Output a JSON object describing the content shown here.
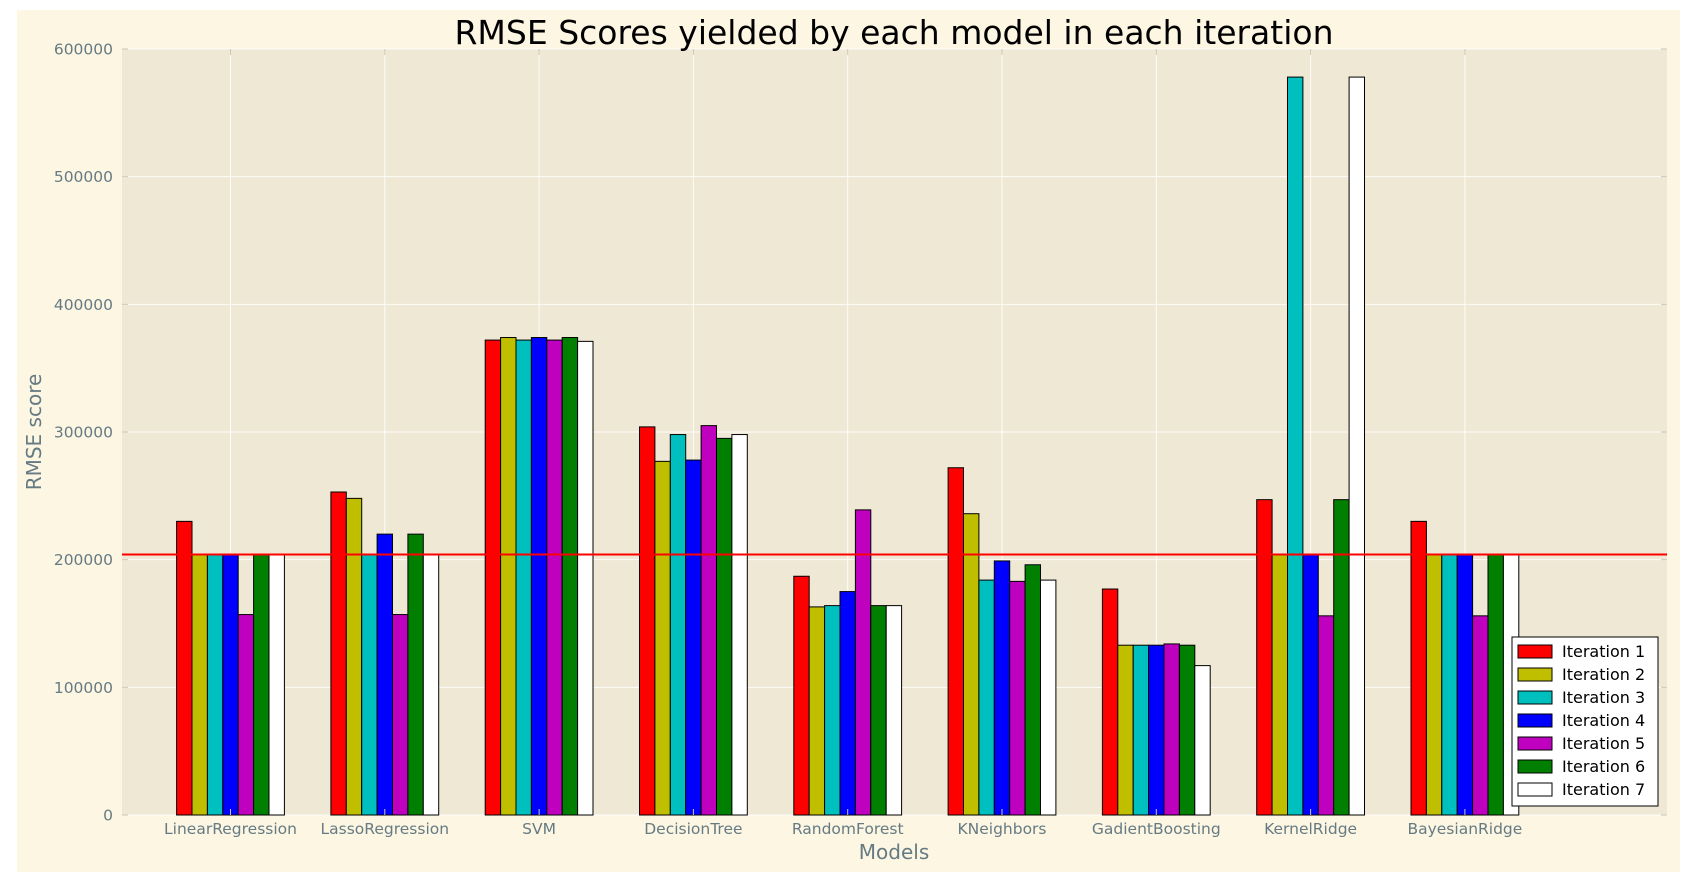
{
  "chart_data": {
    "type": "bar",
    "title": "RMSE Scores yielded by each model in each iteration",
    "xlabel": "Models",
    "ylabel": "RMSE score",
    "ylim": [
      0,
      600000
    ],
    "yticks": [
      "0",
      "100000",
      "200000",
      "300000",
      "400000",
      "500000",
      "600000"
    ],
    "categories": [
      "LinearRegression",
      "LassoRegression",
      "SVM",
      "DecisionTree",
      "RandomForest",
      "KNeighbors",
      "GadientBoosting",
      "KernelRidge",
      "BayesianRidge"
    ],
    "series": [
      {
        "name": "Iteration 1",
        "color": "#ff0000",
        "values": [
          230000,
          253000,
          372000,
          304000,
          187000,
          272000,
          177000,
          247000,
          230000
        ]
      },
      {
        "name": "Iteration 2",
        "color": "#bfbf00",
        "values": [
          204000,
          248000,
          374000,
          277000,
          163000,
          236000,
          133000,
          204000,
          204000
        ]
      },
      {
        "name": "Iteration 3",
        "color": "#00bfbf",
        "values": [
          204000,
          204000,
          372000,
          298000,
          164000,
          184000,
          133000,
          578000,
          204000
        ]
      },
      {
        "name": "Iteration 4",
        "color": "#0000ff",
        "values": [
          204000,
          220000,
          374000,
          278000,
          175000,
          199000,
          133000,
          204000,
          204000
        ]
      },
      {
        "name": "Iteration 5",
        "color": "#bf00bf",
        "values": [
          157000,
          157000,
          372000,
          305000,
          239000,
          183000,
          134000,
          156000,
          156000
        ]
      },
      {
        "name": "Iteration 6",
        "color": "#007f00",
        "values": [
          204000,
          220000,
          374000,
          295000,
          164000,
          196000,
          133000,
          247000,
          204000
        ]
      },
      {
        "name": "Iteration 7",
        "color": "#ffffff",
        "values": [
          204000,
          204000,
          371000,
          298000,
          164000,
          184000,
          117000,
          578000,
          204000
        ]
      }
    ],
    "reference_line": {
      "value": 204000,
      "color": "#ff0000"
    },
    "grid": true,
    "legend_position": "lower-right",
    "background": "#fdf6e3",
    "plot_background": "#eee8d5"
  }
}
